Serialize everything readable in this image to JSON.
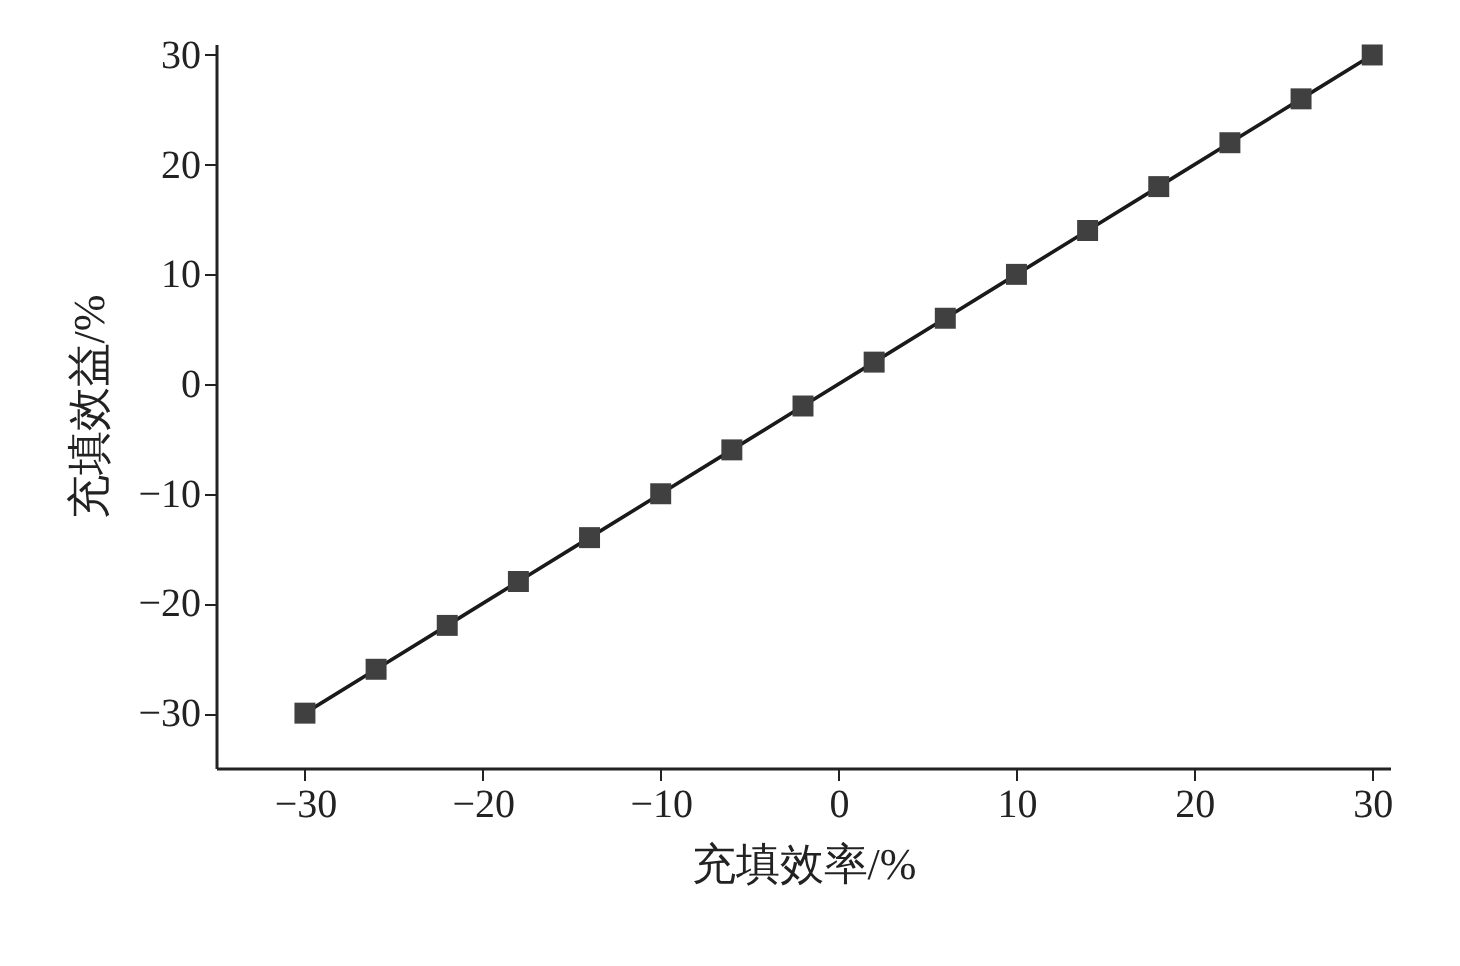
{
  "chart_data": {
    "type": "line",
    "xlabel": "充填效率/%",
    "ylabel": "充填效益/%",
    "x": [
      -30,
      -26,
      -22,
      -18,
      -14,
      -10,
      -6,
      -2,
      2,
      6,
      10,
      14,
      18,
      22,
      26,
      30
    ],
    "series": [
      {
        "color": "#1a1a1a",
        "values": [
          -30,
          -26,
          -22,
          -18,
          -14,
          -10,
          -6,
          -2,
          2,
          6,
          10,
          14,
          18,
          22,
          26,
          30
        ]
      }
    ],
    "xlim": [
      -35,
      31
    ],
    "ylim": [
      -35,
      31
    ],
    "xticks": [
      -30,
      -20,
      -10,
      0,
      10,
      20,
      30
    ],
    "yticks": [
      -30,
      -20,
      -10,
      0,
      10,
      20,
      30
    ],
    "marker": "square",
    "line_style": "solid",
    "grid": false
  }
}
